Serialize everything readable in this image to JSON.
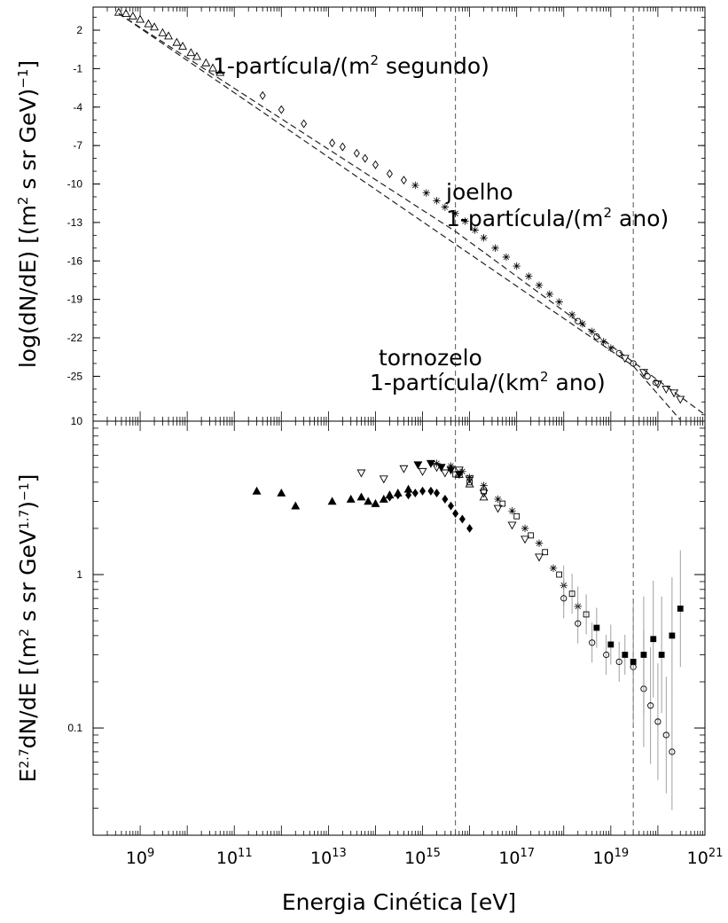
{
  "chart_data": [
    {
      "type": "scatter",
      "panel": "top",
      "xscale": "log",
      "xlim": [
        100000000.0,
        1e+21
      ],
      "ylim": [
        -28.5,
        3.8
      ],
      "ylabel": "log(dN/dE) [(m² s sr GeV)⁻¹]",
      "yticks": [
        2,
        -1,
        -4,
        -7,
        -10,
        -13,
        -16,
        -19,
        -22,
        -25
      ],
      "grid": false,
      "vlines": [
        5000000000000000.0,
        3e+19
      ],
      "series": [
        {
          "marker": "triangle-up",
          "points": [
            [
              350000000.0,
              3.4
            ],
            [
              500000000.0,
              3.3
            ],
            [
              700000000.0,
              3.1
            ],
            [
              1000000000.0,
              2.85
            ],
            [
              1500000000.0,
              2.5
            ],
            [
              2000000000.0,
              2.25
            ],
            [
              3000000000.0,
              1.8
            ],
            [
              4000000000.0,
              1.55
            ],
            [
              6000000000.0,
              1.05
            ],
            [
              8000000000.0,
              0.75
            ],
            [
              12000000000.0,
              0.25
            ],
            [
              16000000000.0,
              -0.05
            ],
            [
              25000000000.0,
              -0.55
            ],
            [
              35000000000.0,
              -0.95
            ],
            [
              50000000000.0,
              -1.3
            ]
          ]
        },
        {
          "marker": "diamond-open",
          "points": [
            [
              400000000000.0,
              -3.1
            ],
            [
              1000000000000.0,
              -4.2
            ],
            [
              3000000000000.0,
              -5.3
            ],
            [
              12000000000000.0,
              -6.8
            ],
            [
              20000000000000.0,
              -7.1
            ],
            [
              40000000000000.0,
              -7.6
            ],
            [
              60000000000000.0,
              -8.0
            ],
            [
              100000000000000.0,
              -8.5
            ],
            [
              200000000000000.0,
              -9.2
            ],
            [
              400000000000000.0,
              -9.7
            ]
          ]
        },
        {
          "marker": "asterisk",
          "points": [
            [
              700000000000000.0,
              -10.1
            ],
            [
              1200000000000000.0,
              -10.7
            ],
            [
              2000000000000000.0,
              -11.3
            ],
            [
              3000000000000000.0,
              -11.8
            ],
            [
              5000000000000000.0,
              -12.3
            ],
            [
              8000000000000000.0,
              -12.9
            ],
            [
              1.3e+16,
              -13.6
            ],
            [
              2e+16,
              -14.2
            ],
            [
              3.5e+16,
              -15.0
            ],
            [
              6e+16,
              -15.7
            ],
            [
              1e+17,
              -16.4
            ],
            [
              1.8e+17,
              -17.2
            ],
            [
              3e+17,
              -17.9
            ],
            [
              5e+17,
              -18.6
            ],
            [
              8e+17,
              -19.2
            ],
            [
              1.5e+18,
              -20.2
            ],
            [
              2.5e+18,
              -20.9
            ],
            [
              4e+18,
              -21.5
            ],
            [
              7e+18,
              -22.3
            ],
            [
              1e+19,
              -22.8
            ]
          ]
        },
        {
          "marker": "circle-open",
          "points": [
            [
              2e+18,
              -20.7
            ],
            [
              5e+18,
              -21.9
            ],
            [
              1.5e+19,
              -23.2
            ],
            [
              3e+19,
              -24.0
            ],
            [
              6e+19,
              -25.0
            ],
            [
              9e+19,
              -25.5
            ]
          ]
        },
        {
          "marker": "triangle-down",
          "points": [
            [
              2e+19,
              -23.6
            ],
            [
              5e+19,
              -24.7
            ],
            [
              1e+20,
              -25.6
            ],
            [
              1.5e+20,
              -26.0
            ],
            [
              2.2e+20,
              -26.3
            ],
            [
              3e+20,
              -26.8
            ]
          ]
        }
      ],
      "reference_lines": [
        {
          "style": "dashed",
          "points": [
            [
              350000000.0,
              3.3
            ],
            [
              3e+19,
              -24.2
            ],
            [
              3e+20,
              -28.4
            ]
          ]
        },
        {
          "style": "dashed",
          "points": [
            [
              350000000.0,
              3.3
            ],
            [
              5000000000000000.0,
              -13.7
            ],
            [
              1e+21,
              -28.0
            ]
          ]
        }
      ],
      "annotations": [
        {
          "text": "1-partícula/(m² segundo)",
          "x": 50000000000.0,
          "y": -1
        },
        {
          "text": "joelho",
          "x": 5000000000000000.0,
          "y": -10
        },
        {
          "text": "1-partícula/(m² ano)",
          "x": 5000000000000000.0,
          "y": -12
        },
        {
          "text": "tornozelo",
          "x": 150000000000000.0,
          "y": -24
        },
        {
          "text": "1-partícula/(km² ano)",
          "x": 150000000000000.0,
          "y": -26
        }
      ]
    },
    {
      "type": "scatter",
      "panel": "bottom",
      "xscale": "log",
      "yscale": "log",
      "xlim": [
        100000000.0,
        1e+21
      ],
      "ylim": [
        0.02,
        10
      ],
      "xlabel": "Energia Cinética [eV]",
      "ylabel": "E^2.7 dN/dE [(m² s sr GeV^1.7)⁻¹]",
      "xticks": [
        "10^9",
        "10^11",
        "10^13",
        "10^15",
        "10^17",
        "10^19",
        "10^21"
      ],
      "yticks": [
        "10",
        "1",
        "0.1"
      ],
      "grid": false,
      "vlines": [
        5000000000000000.0,
        3e+19
      ],
      "series": [
        {
          "marker": "triangle-filled",
          "points": [
            [
              300000000000.0,
              3.5
            ],
            [
              1000000000000.0,
              3.4
            ],
            [
              2000000000000.0,
              2.8
            ],
            [
              12000000000000.0,
              3.0
            ],
            [
              30000000000000.0,
              3.1
            ],
            [
              50000000000000.0,
              3.2
            ],
            [
              70000000000000.0,
              3.0
            ],
            [
              100000000000000.0,
              2.9
            ],
            [
              150000000000000.0,
              3.1
            ],
            [
              200000000000000.0,
              3.3
            ],
            [
              300000000000000.0,
              3.4
            ],
            [
              500000000000000.0,
              3.6
            ]
          ]
        },
        {
          "marker": "diamond-filled",
          "points": [
            [
              200000000000000.0,
              3.2
            ],
            [
              300000000000000.0,
              3.3
            ],
            [
              500000000000000.0,
              3.3
            ],
            [
              700000000000000.0,
              3.4
            ],
            [
              1000000000000000.0,
              3.5
            ],
            [
              1500000000000000.0,
              3.5
            ],
            [
              2000000000000000.0,
              3.4
            ],
            [
              3000000000000000.0,
              3.1
            ],
            [
              4000000000000000.0,
              2.8
            ],
            [
              5000000000000000.0,
              2.5
            ],
            [
              7000000000000000.0,
              2.3
            ],
            [
              1e+16,
              2.0
            ]
          ]
        },
        {
          "marker": "triangle-down-filled",
          "points": [
            [
              800000000000000.0,
              5.2
            ],
            [
              1500000000000000.0,
              5.3
            ],
            [
              2500000000000000.0,
              5.0
            ],
            [
              4000000000000000.0,
              4.8
            ],
            [
              6000000000000000.0,
              4.5
            ]
          ]
        },
        {
          "marker": "triangle-down-open",
          "points": [
            [
              50000000000000.0,
              4.6
            ],
            [
              150000000000000.0,
              4.2
            ],
            [
              400000000000000.0,
              4.9
            ],
            [
              1000000000000000.0,
              4.7
            ],
            [
              2000000000000000.0,
              5.0
            ],
            [
              3000000000000000.0,
              4.6
            ],
            [
              6000000000000000.0,
              4.8
            ],
            [
              1e+16,
              4.2
            ],
            [
              2e+16,
              3.4
            ],
            [
              4e+16,
              2.7
            ],
            [
              8e+16,
              2.1
            ],
            [
              1.5e+17,
              1.7
            ],
            [
              3e+17,
              1.3
            ]
          ]
        },
        {
          "marker": "asterisk",
          "points": [
            [
              2000000000000000.0,
              5.3
            ],
            [
              4000000000000000.0,
              5.1
            ],
            [
              7000000000000000.0,
              4.7
            ],
            [
              1e+16,
              4.3
            ],
            [
              2e+16,
              3.8
            ],
            [
              4e+16,
              3.1
            ],
            [
              8e+16,
              2.6
            ],
            [
              1.5e+17,
              2.0
            ],
            [
              3e+17,
              1.6
            ],
            [
              6e+17,
              1.1
            ],
            [
              1e+18,
              0.85
            ],
            [
              2e+18,
              0.62
            ]
          ]
        },
        {
          "marker": "square-open",
          "points": [
            [
              5000000000000000.0,
              4.5
            ],
            [
              1e+16,
              4.0
            ],
            [
              2e+16,
              3.5
            ],
            [
              5e+16,
              2.9
            ],
            [
              1e+17,
              2.4
            ],
            [
              2e+17,
              1.8
            ],
            [
              4e+17,
              1.4
            ],
            [
              8e+17,
              1.0
            ],
            [
              1.5e+18,
              0.75
            ],
            [
              3e+18,
              0.55
            ]
          ]
        },
        {
          "marker": "circle-open",
          "points": [
            [
              1e+18,
              0.7
            ],
            [
              2e+18,
              0.48
            ],
            [
              4e+18,
              0.36
            ],
            [
              8e+18,
              0.3
            ],
            [
              1.5e+19,
              0.27
            ],
            [
              3e+19,
              0.25
            ],
            [
              5e+19,
              0.18
            ],
            [
              7e+19,
              0.14
            ],
            [
              1e+20,
              0.11
            ],
            [
              1.5e+20,
              0.09
            ],
            [
              2e+20,
              0.07
            ]
          ]
        },
        {
          "marker": "square-filled",
          "points": [
            [
              5e+18,
              0.45
            ],
            [
              1e+19,
              0.35
            ],
            [
              2e+19,
              0.3
            ],
            [
              3e+19,
              0.27
            ],
            [
              5e+19,
              0.3
            ],
            [
              8e+19,
              0.38
            ],
            [
              1.2e+20,
              0.3
            ],
            [
              2e+20,
              0.4
            ],
            [
              3e+20,
              0.6
            ]
          ]
        },
        {
          "marker": "triangle-up-open",
          "points": [
            [
              6000000000000000.0,
              4.5
            ],
            [
              1e+16,
              3.9
            ],
            [
              2e+16,
              3.2
            ]
          ]
        }
      ]
    }
  ]
}
